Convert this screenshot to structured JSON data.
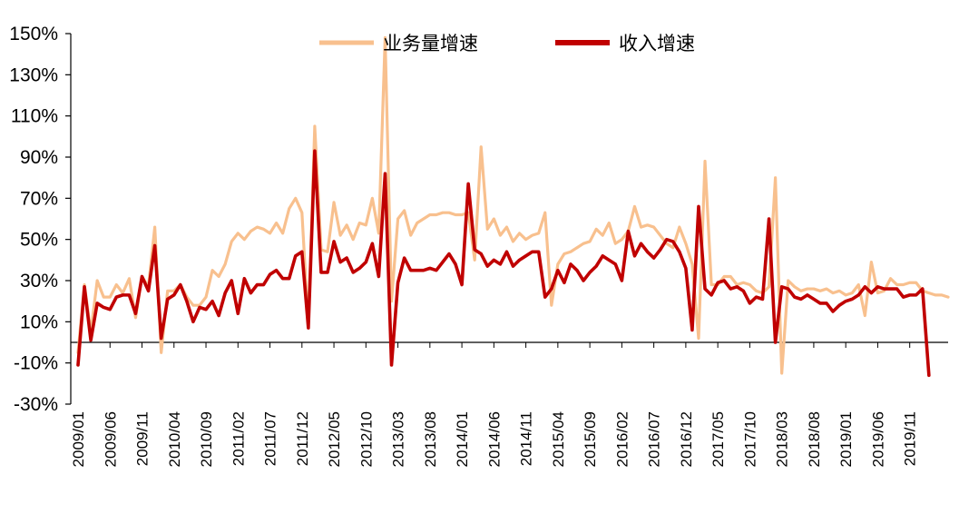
{
  "chart_data": {
    "type": "line",
    "title": "",
    "xlabel": "",
    "ylabel": "",
    "ylim": [
      -30,
      150
    ],
    "yticks": [
      -30,
      -10,
      10,
      30,
      50,
      70,
      90,
      110,
      130,
      150
    ],
    "ytick_labels": [
      "-30%",
      "-10%",
      "10%",
      "30%",
      "50%",
      "70%",
      "90%",
      "110%",
      "130%",
      "150%"
    ],
    "x_start": "2009/01",
    "x_tick_labels": [
      "2009/01",
      "2009/06",
      "2009/11",
      "2010/04",
      "2010/09",
      "2011/02",
      "2011/07",
      "2011/12",
      "2012/05",
      "2012/10",
      "2013/03",
      "2013/08",
      "2014/01",
      "2014/06",
      "2014/11",
      "2015/04",
      "2015/09",
      "2016/02",
      "2016/07",
      "2016/12",
      "2017/05",
      "2017/10",
      "2018/03",
      "2018/08",
      "2019/01",
      "2019/06",
      "2019/11"
    ],
    "grid": false,
    "legend": "top-center",
    "series": [
      {
        "name": "业务量增速",
        "color": "#F8C08E",
        "values": [
          -5,
          28,
          5,
          30,
          22,
          22,
          28,
          24,
          31,
          12,
          32,
          27,
          56,
          -5,
          25,
          25,
          28,
          22,
          18,
          18,
          22,
          35,
          32,
          38,
          49,
          53,
          50,
          54,
          56,
          55,
          53,
          58,
          53,
          65,
          70,
          63,
          8,
          105,
          45,
          44,
          68,
          52,
          57,
          50,
          58,
          57,
          70,
          53,
          148,
          20,
          60,
          64,
          52,
          58,
          60,
          62,
          62,
          63,
          63,
          62,
          62,
          63,
          40,
          95,
          55,
          60,
          52,
          56,
          49,
          53,
          50,
          52,
          53,
          63,
          18,
          38,
          43,
          44,
          46,
          48,
          49,
          55,
          52,
          58,
          48,
          50,
          54,
          66,
          56,
          57,
          56,
          52,
          48,
          46,
          56,
          48,
          38,
          2,
          88,
          28,
          28,
          32,
          32,
          28,
          29,
          28,
          25,
          24,
          27,
          80,
          -15,
          30,
          27,
          25,
          26,
          26,
          25,
          26,
          24,
          25,
          23,
          24,
          28,
          13,
          39,
          24,
          25,
          31,
          28,
          28,
          29,
          29,
          25,
          24,
          23,
          23,
          22
        ]
      },
      {
        "name": "收入增速",
        "color": "#C00000",
        "values": [
          -11,
          27,
          1,
          19,
          17,
          16,
          22,
          23,
          23,
          14,
          32,
          25,
          47,
          2,
          21,
          23,
          28,
          20,
          10,
          17,
          16,
          20,
          13,
          24,
          30,
          14,
          31,
          24,
          28,
          28,
          33,
          35,
          31,
          31,
          42,
          44,
          7,
          93,
          34,
          34,
          49,
          39,
          41,
          34,
          36,
          39,
          48,
          32,
          82,
          -11,
          29,
          41,
          35,
          35,
          35,
          36,
          35,
          39,
          43,
          38,
          28,
          77,
          45,
          43,
          37,
          40,
          38,
          44,
          37,
          40,
          42,
          44,
          44,
          22,
          26,
          35,
          29,
          38,
          35,
          30,
          34,
          37,
          42,
          40,
          38,
          30,
          54,
          42,
          48,
          44,
          41,
          45,
          50,
          49,
          44,
          36,
          6,
          66,
          26,
          23,
          29,
          30,
          26,
          27,
          25,
          19,
          22,
          21,
          60,
          0,
          27,
          26,
          22,
          21,
          23,
          21,
          19,
          19,
          15,
          18,
          20,
          21,
          23,
          27,
          24,
          27,
          26,
          26,
          26,
          22,
          23,
          23,
          26,
          -16
        ]
      }
    ]
  }
}
